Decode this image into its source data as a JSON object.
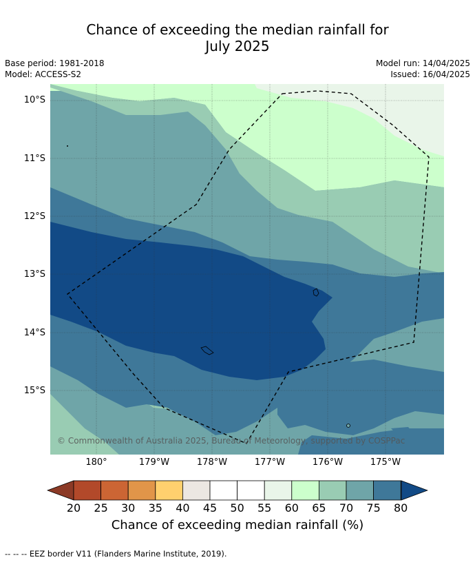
{
  "title": {
    "line1": "Chance of exceeding the median rainfall for",
    "line2": "July 2025"
  },
  "meta": {
    "base_period": "Base period: 1981-2018",
    "model": "Model: ACCESS-S2",
    "model_run": "Model run: 14/04/2025",
    "issued": "Issued: 16/04/2025"
  },
  "copyright": "© Commonwealth of Australia 2025, Bureau of Meteorology, supported by COSPPac",
  "lat_labels": [
    "10°S",
    "11°S",
    "12°S",
    "13°S",
    "14°S",
    "15°S"
  ],
  "lon_labels": [
    "180°",
    "179°W",
    "178°W",
    "177°W",
    "176°W",
    "175°W"
  ],
  "colorbar": {
    "ticks": [
      "20",
      "25",
      "30",
      "35",
      "40",
      "45",
      "50",
      "55",
      "60",
      "65",
      "70",
      "75",
      "80"
    ],
    "colors": {
      "below_20": "#8c3a26",
      "20_25": "#b2492a",
      "25_30": "#cc6534",
      "30_35": "#e19549",
      "35_40": "#ffd06e",
      "40_45": "#ece7e2",
      "45_50": "#ffffff",
      "50_55": "#ffffff",
      "55_60": "#e9f5e9",
      "60_65": "#ccffcc",
      "65_70": "#99ccb3",
      "70_75": "#6fa5a8",
      "75_80": "#3f7899",
      "above_80": "#124a86"
    },
    "label": "Chance of exceeding median rainfall (%)"
  },
  "footer": "--  --  -- EEZ border V11 (Flanders Marine Institute, 2019)."
}
